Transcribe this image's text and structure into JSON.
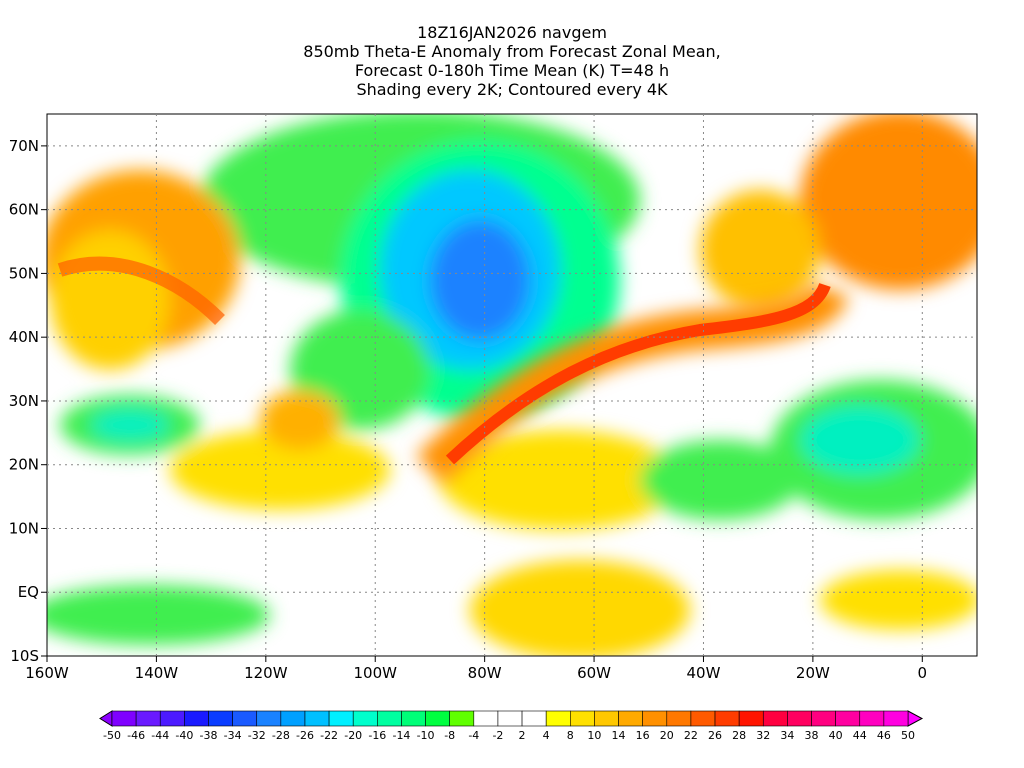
{
  "title_lines": [
    "18Z16JAN2026 navgem",
    "850mb Theta-E Anomaly from Forecast Zonal Mean,",
    "Forecast 0-180h Time Mean (K) T=48 h",
    "Shading every 2K; Contoured every 4K"
  ],
  "lat_labels": [
    "70N",
    "60N",
    "50N",
    "40N",
    "30N",
    "20N",
    "10N",
    "EQ",
    "10S"
  ],
  "lat_values": [
    70,
    60,
    50,
    40,
    30,
    20,
    10,
    0,
    -10
  ],
  "lon_labels": [
    "160W",
    "140W",
    "120W",
    "100W",
    "80W",
    "60W",
    "40W",
    "20W",
    "0"
  ],
  "lon_values": [
    -160,
    -140,
    -120,
    -100,
    -80,
    -60,
    -40,
    -20,
    0
  ],
  "colorbar": {
    "labels": [
      "-50",
      "-46",
      "-44",
      "-40",
      "-38",
      "-34",
      "-32",
      "-28",
      "-26",
      "-22",
      "-20",
      "-16",
      "-14",
      "-10",
      "-8",
      "-4",
      "-2",
      "2",
      "4",
      "8",
      "10",
      "14",
      "16",
      "20",
      "22",
      "26",
      "28",
      "32",
      "34",
      "38",
      "40",
      "44",
      "46",
      "50"
    ],
    "colors": [
      "#7f00ff",
      "#6a1aff",
      "#4c1aff",
      "#1a1aff",
      "#0a3cff",
      "#1a5aff",
      "#1a82ff",
      "#00a0ff",
      "#00c0ff",
      "#00f0ff",
      "#00ffcc",
      "#00ffa0",
      "#00ff78",
      "#00ff40",
      "#60ff00",
      "#ffffff",
      "#ffffff",
      "#ffffff",
      "#ffff00",
      "#ffe000",
      "#ffc800",
      "#ffaa00",
      "#ff9000",
      "#ff7800",
      "#ff5a00",
      "#ff3c00",
      "#ff1400",
      "#ff0040",
      "#ff0060",
      "#ff0080",
      "#ff00a0",
      "#ff00c0",
      "#ff00e0"
    ],
    "low_color": "#8c00ff",
    "high_color": "#ff00ff"
  }
}
